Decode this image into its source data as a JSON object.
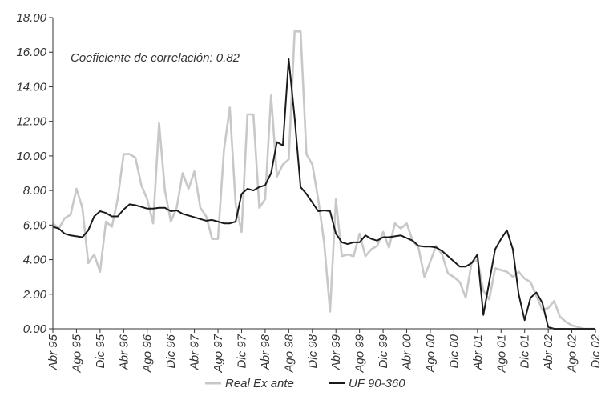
{
  "chart_data": {
    "type": "line",
    "annotation": "Coeficiente de correlación:  0.82",
    "ylim": [
      0,
      18
    ],
    "yticks": [
      "0.00",
      "2.00",
      "4.00",
      "6.00",
      "8.00",
      "10.00",
      "12.00",
      "14.00",
      "16.00",
      "18.00"
    ],
    "xticks": [
      "Abr 95",
      "Ago 95",
      "Dic 95",
      "Abr 96",
      "Ago 96",
      "Dic 96",
      "Abr 97",
      "Ago 97",
      "Dic 97",
      "Abr 98",
      "Ago 98",
      "Dic 98",
      "Abr 99",
      "Ago 99",
      "Dic 99",
      "Abr 00",
      "Ago 00",
      "Dic 00",
      "Abr 01",
      "Ago 01",
      "Dic 01",
      "Abr 02",
      "Ago 02",
      "Dic 02"
    ],
    "grid": false,
    "legend": "bottom",
    "series": [
      {
        "name": "Real Ex ante",
        "color": "#c8c8c8",
        "x": [
          "Abr 95",
          "May 95",
          "Jun 95",
          "Jul 95",
          "Ago 95",
          "Sep 95",
          "Oct 95",
          "Nov 95",
          "Dic 95",
          "Ene 96",
          "Feb 96",
          "Mar 96",
          "Abr 96",
          "May 96",
          "Jun 96",
          "Jul 96",
          "Ago 96",
          "Sep 96",
          "Oct 96",
          "Nov 96",
          "Dic 96",
          "Ene 97",
          "Feb 97",
          "Mar 97",
          "Abr 97",
          "May 97",
          "Jun 97",
          "Jul 97",
          "Ago 97",
          "Sep 97",
          "Oct 97",
          "Nov 97",
          "Dic 97",
          "Ene 98",
          "Feb 98",
          "Mar 98",
          "Abr 98",
          "May 98",
          "Jun 98",
          "Jul 98",
          "Ago 98",
          "Sep 98",
          "Oct 98",
          "Nov 98",
          "Dic 98",
          "Ene 99",
          "Feb 99",
          "Mar 99",
          "Abr 99",
          "May 99",
          "Jun 99",
          "Jul 99",
          "Ago 99",
          "Sep 99",
          "Oct 99",
          "Nov 99",
          "Dic 99",
          "Ene 00",
          "Feb 00",
          "Mar 00",
          "Abr 00",
          "May 00",
          "Jun 00",
          "Jul 00",
          "Ago 00",
          "Sep 00",
          "Oct 00",
          "Nov 00",
          "Dic 00",
          "Ene 01",
          "Feb 01",
          "Mar 01",
          "Abr 01",
          "May 01",
          "Jun 01",
          "Jul 01",
          "Ago 01",
          "Sep 01",
          "Oct 01",
          "Nov 01",
          "Dic 01",
          "Ene 02",
          "Feb 02",
          "Mar 02",
          "Abr 02",
          "May 02",
          "Jun 02",
          "Jul 02",
          "Ago 02",
          "Sep 02",
          "Oct 02",
          "Nov 02",
          "Dic 02"
        ],
        "values": [
          6.1,
          5.8,
          6.4,
          6.6,
          8.1,
          7.0,
          3.8,
          4.3,
          3.3,
          6.2,
          5.9,
          7.5,
          10.1,
          10.1,
          9.9,
          8.3,
          7.5,
          6.1,
          11.9,
          8.0,
          6.2,
          7.0,
          9.0,
          8.1,
          9.1,
          7.0,
          6.5,
          5.2,
          5.2,
          10.3,
          12.8,
          7.2,
          5.6,
          12.4,
          12.4,
          7.0,
          7.5,
          13.5,
          8.8,
          9.5,
          9.8,
          17.2,
          17.2,
          10.1,
          9.5,
          7.5,
          5.0,
          1.0,
          7.5,
          4.2,
          4.3,
          4.2,
          5.5,
          4.2,
          4.6,
          4.8,
          5.6,
          4.7,
          6.1,
          5.8,
          6.1,
          5.1,
          4.7,
          3.0,
          3.9,
          4.8,
          4.3,
          3.2,
          3.0,
          2.7,
          1.8,
          3.8,
          4.0,
          2.2,
          1.7,
          3.5,
          3.4,
          3.3,
          3.0,
          3.3,
          2.9,
          2.7,
          1.9,
          1.1,
          1.2,
          1.6,
          0.7,
          0.4,
          0.2,
          0.1,
          0.0,
          0.0,
          0.0
        ]
      },
      {
        "name": "UF 90-360",
        "color": "#1a1a1a",
        "x": [
          "Abr 95",
          "May 95",
          "Jun 95",
          "Jul 95",
          "Ago 95",
          "Sep 95",
          "Oct 95",
          "Nov 95",
          "Dic 95",
          "Ene 96",
          "Feb 96",
          "Mar 96",
          "Abr 96",
          "May 96",
          "Jun 96",
          "Jul 96",
          "Ago 96",
          "Sep 96",
          "Oct 96",
          "Nov 96",
          "Dic 96",
          "Ene 97",
          "Feb 97",
          "Mar 97",
          "Abr 97",
          "May 97",
          "Jun 97",
          "Jul 97",
          "Ago 97",
          "Sep 97",
          "Oct 97",
          "Nov 97",
          "Dic 97",
          "Ene 98",
          "Feb 98",
          "Mar 98",
          "Abr 98",
          "May 98",
          "Jun 98",
          "Jul 98",
          "Ago 98",
          "Sep 98",
          "Oct 98",
          "Nov 98",
          "Dic 98",
          "Ene 99",
          "Feb 99",
          "Mar 99",
          "Abr 99",
          "May 99",
          "Jun 99",
          "Jul 99",
          "Ago 99",
          "Sep 99",
          "Oct 99",
          "Nov 99",
          "Dic 99",
          "Ene 00",
          "Feb 00",
          "Mar 00",
          "Abr 00",
          "May 00",
          "Jun 00",
          "Jul 00",
          "Ago 00",
          "Sep 00",
          "Oct 00",
          "Nov 00",
          "Dic 00",
          "Ene 01",
          "Feb 01",
          "Mar 01",
          "Abr 01",
          "May 01",
          "Jun 01",
          "Jul 01",
          "Ago 01",
          "Sep 01",
          "Oct 01",
          "Nov 01",
          "Dic 01",
          "Ene 02",
          "Feb 02",
          "Mar 02",
          "Abr 02",
          "May 02",
          "Jun 02",
          "Jul 02",
          "Ago 02",
          "Sep 02",
          "Oct 02",
          "Nov 02",
          "Dic 02"
        ],
        "values": [
          5.9,
          5.8,
          5.5,
          5.4,
          5.35,
          5.3,
          5.7,
          6.5,
          6.8,
          6.7,
          6.5,
          6.5,
          6.9,
          7.2,
          7.15,
          7.05,
          6.95,
          6.95,
          7.0,
          7.0,
          6.8,
          6.85,
          6.65,
          6.55,
          6.45,
          6.35,
          6.25,
          6.3,
          6.2,
          6.1,
          6.1,
          6.2,
          7.8,
          8.1,
          8.0,
          8.2,
          8.3,
          9.0,
          10.8,
          10.6,
          15.6,
          12.2,
          8.2,
          7.8,
          7.3,
          6.8,
          6.85,
          6.8,
          5.5,
          5.0,
          4.9,
          5.0,
          5.0,
          5.4,
          5.2,
          5.1,
          5.3,
          5.3,
          5.35,
          5.4,
          5.25,
          5.1,
          4.8,
          4.75,
          4.75,
          4.7,
          4.5,
          4.2,
          3.9,
          3.6,
          3.6,
          3.8,
          4.3,
          0.8,
          2.7,
          4.6,
          5.2,
          5.7,
          4.6,
          2.0,
          0.5,
          1.8,
          2.1,
          1.5,
          0.1,
          0.0,
          0.0,
          0.0,
          0.0,
          0.0,
          0.0,
          0.0,
          0.0
        ]
      }
    ]
  }
}
